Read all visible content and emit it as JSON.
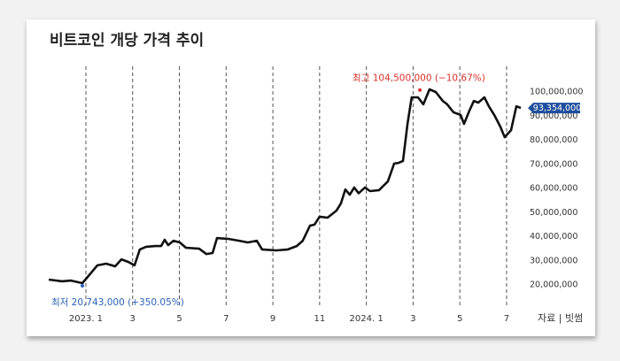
{
  "chart_data": {
    "type": "line",
    "title": "비트코인 개당 가격 추이",
    "source": "자료 | 빗썸",
    "x": [
      -1.59,
      -1.02,
      -0.64,
      -0.15,
      0.11,
      0.49,
      0.87,
      1.25,
      1.52,
      1.82,
      2.08,
      2.31,
      2.58,
      2.96,
      3.22,
      3.37,
      3.52,
      3.75,
      4.02,
      4.28,
      4.85,
      5.15,
      5.42,
      5.61,
      6.1,
      6.56,
      6.93,
      7.31,
      7.54,
      8.15,
      8.64,
      9.02,
      9.28,
      9.59,
      9.78,
      10.0,
      10.34,
      10.72,
      10.91,
      11.1,
      11.29,
      11.48,
      11.67,
      11.94,
      12.16,
      12.54,
      12.92,
      13.19,
      13.38,
      13.57,
      13.76,
      13.94,
      14.21,
      14.44,
      14.7,
      14.97,
      15.27,
      15.46,
      15.73,
      16.03,
      16.18,
      16.41,
      16.6,
      16.79,
      17.05,
      17.24,
      17.47,
      17.73,
      17.92,
      18.19,
      18.42,
      18.61
    ],
    "series": [
      {
        "color": "#111111",
        "values": [
          22200000,
          21500000,
          21800000,
          20743000,
          23700000,
          28100000,
          28800000,
          27700000,
          30600000,
          29500000,
          28100000,
          34700000,
          35800000,
          36100000,
          36100000,
          38700000,
          36500000,
          38300000,
          37600000,
          35400000,
          35000000,
          32800000,
          33200000,
          39400000,
          39100000,
          38300000,
          37600000,
          38300000,
          34700000,
          34300000,
          34700000,
          36100000,
          38300000,
          44600000,
          45000000,
          48300000,
          47900000,
          50800000,
          53800000,
          59600000,
          57400000,
          60400000,
          58000000,
          60400000,
          58900000,
          59300000,
          62900000,
          70300000,
          70600000,
          71400000,
          86800000,
          97800000,
          97800000,
          94900000,
          101100000,
          100000000,
          96300000,
          94900000,
          91600000,
          90500000,
          86800000,
          92300000,
          96300000,
          95600000,
          97800000,
          94100000,
          90500000,
          85700000,
          81300000,
          84200000,
          94100000,
          93354000
        ]
      }
    ],
    "xlim": [
      -1.78,
      18.76
    ],
    "xticks": [
      {
        "value": 0,
        "label": "2023. 1"
      },
      {
        "value": 2,
        "label": "3"
      },
      {
        "value": 4,
        "label": "5"
      },
      {
        "value": 6,
        "label": "7"
      },
      {
        "value": 8,
        "label": "9"
      },
      {
        "value": 10,
        "label": "11"
      },
      {
        "value": 12,
        "label": "2024. 1"
      },
      {
        "value": 14,
        "label": "3"
      },
      {
        "value": 16,
        "label": "5"
      },
      {
        "value": 18,
        "label": "7"
      }
    ],
    "ylim": [
      20000000,
      100000000
    ],
    "yticks": [
      {
        "value": 20000000,
        "label": "20,000,000"
      },
      {
        "value": 30000000,
        "label": "30,000,000"
      },
      {
        "value": 40000000,
        "label": "40,000,000"
      },
      {
        "value": 50000000,
        "label": "50,000,000"
      },
      {
        "value": 60000000,
        "label": "60,000,000"
      },
      {
        "value": 70000000,
        "label": "70,000,000"
      },
      {
        "value": 80000000,
        "label": "80,000,000"
      },
      {
        "value": 90000000,
        "label": "90,000,000"
      },
      {
        "value": 100000000,
        "label": "100,000,000"
      }
    ],
    "annotations": [
      {
        "text": "최고 104,500,000 (−10.67%)",
        "x": 14.29,
        "value": 104500000,
        "color": "#d9302a"
      },
      {
        "text": "최저 20,743,000 (+350.05%)",
        "x": -0.15,
        "value": 20743000,
        "color": "#2a62b8"
      }
    ],
    "last_value": {
      "text": "93,354,000",
      "value": 93354000,
      "color": "#1f4e9c"
    }
  }
}
